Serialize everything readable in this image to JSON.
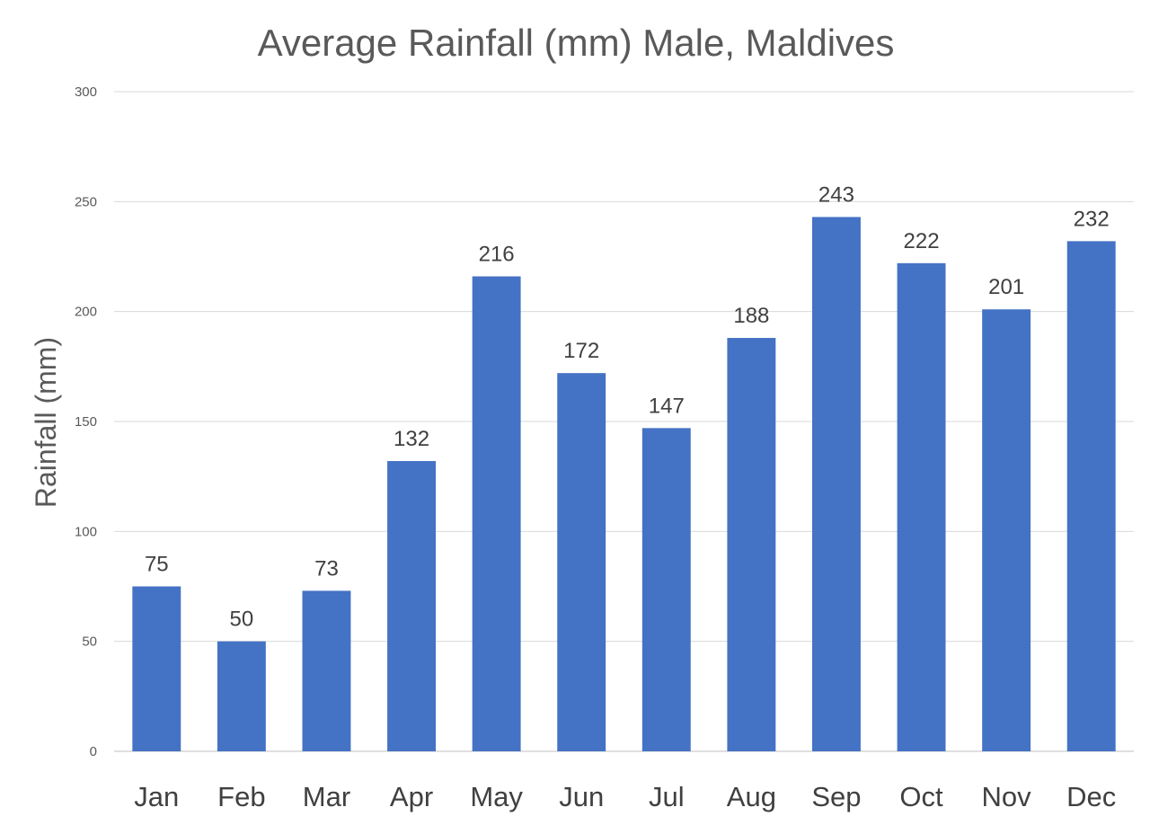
{
  "chart_data": {
    "type": "bar",
    "title": "Average Rainfall (mm) Male, Maldives",
    "xlabel": "",
    "ylabel": "Rainfall (mm)",
    "categories": [
      "Jan",
      "Feb",
      "Mar",
      "Apr",
      "May",
      "Jun",
      "Jul",
      "Aug",
      "Sep",
      "Oct",
      "Nov",
      "Dec"
    ],
    "values": [
      75,
      50,
      73,
      132,
      216,
      172,
      147,
      188,
      243,
      222,
      201,
      232
    ],
    "ylim": [
      0,
      300
    ],
    "yticks": [
      0,
      50,
      100,
      150,
      200,
      250,
      300
    ],
    "grid": true,
    "legend": "none",
    "bar_color": "#4472C4"
  }
}
